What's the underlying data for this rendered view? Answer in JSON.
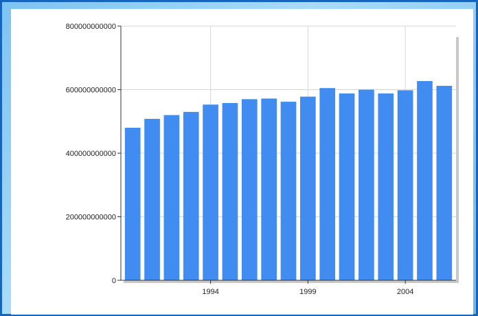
{
  "chart_data": {
    "type": "bar",
    "title": "",
    "xlabel": "",
    "ylabel": "",
    "x": [
      1990,
      1991,
      1992,
      1993,
      1994,
      1995,
      1996,
      1997,
      1998,
      1999,
      2000,
      2001,
      2002,
      2003,
      2004,
      2005,
      2006
    ],
    "values": [
      480000000000,
      508000000000,
      520000000000,
      530000000000,
      553000000000,
      558000000000,
      570000000000,
      572000000000,
      562000000000,
      578000000000,
      605000000000,
      588000000000,
      600000000000,
      588000000000,
      598000000000,
      627000000000,
      612000000000
    ],
    "ylim": [
      0,
      800000000000
    ],
    "y_ticks": [
      {
        "value": 0,
        "label": "0"
      },
      {
        "value": 200000000000,
        "label": "200000000000"
      },
      {
        "value": 400000000000,
        "label": "400000000000"
      },
      {
        "value": 600000000000,
        "label": "600000000000"
      },
      {
        "value": 800000000000,
        "label": "800000000000"
      }
    ],
    "x_ticks": [
      {
        "value": 1994,
        "label": "1994"
      },
      {
        "value": 1999,
        "label": "1999"
      },
      {
        "value": 2004,
        "label": "2004"
      }
    ],
    "grid": true,
    "legend": "none",
    "bar_color": "#418cf0"
  }
}
